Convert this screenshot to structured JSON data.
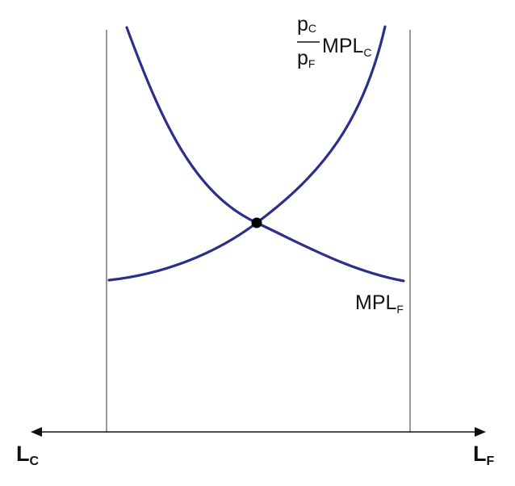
{
  "diagram": {
    "colors": {
      "curve": "#2b2f8c",
      "axis": "#111111",
      "wall": "#777777",
      "point": "#000000"
    },
    "labels": {
      "price_ratio_num_main": "p",
      "price_ratio_num_sub": "C",
      "price_ratio_den_main": "p",
      "price_ratio_den_sub": "F",
      "mplc_main": "MPL",
      "mplc_sub": "C",
      "mplf_main": "MPL",
      "mplf_sub": "F",
      "left_axis_main": "L",
      "left_axis_sub": "C",
      "right_axis_main": "L",
      "right_axis_sub": "F"
    }
  }
}
